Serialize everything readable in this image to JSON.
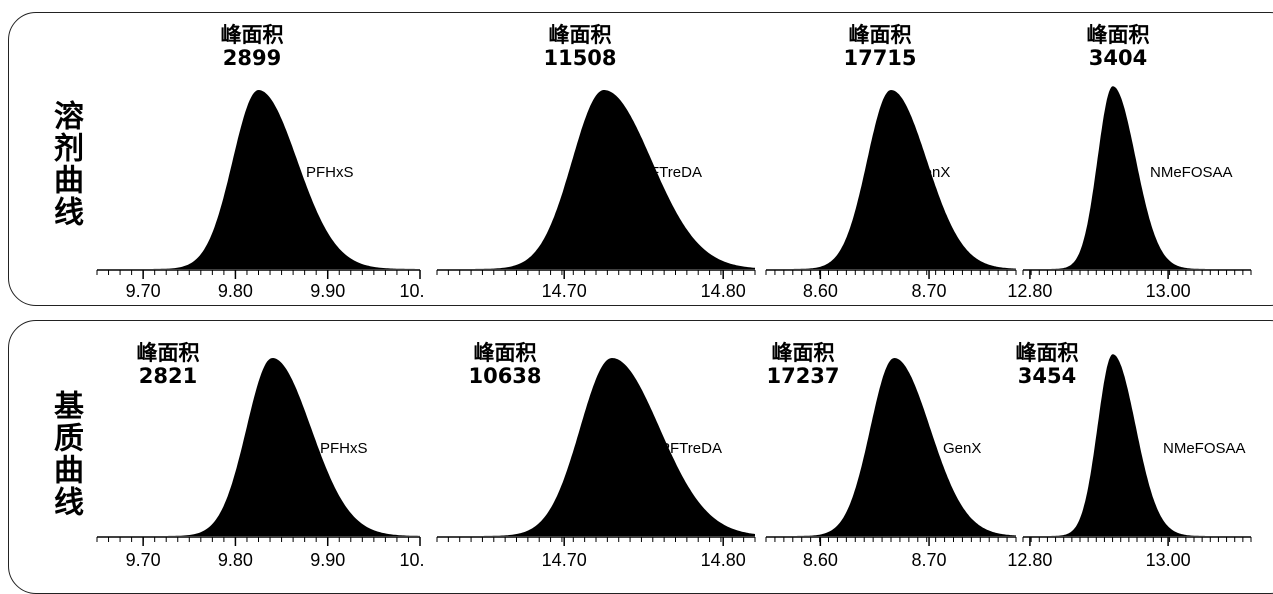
{
  "rows": [
    {
      "label": "溶剂曲线",
      "panels": [
        {
          "compound": "PFHxS",
          "area_label": "峰面积",
          "area_value": "2899",
          "ticks": [
            "9.70",
            "9.80",
            "9.90",
            "10."
          ],
          "tick_values": [
            9.7,
            9.8,
            9.9,
            10.0
          ],
          "xlim": [
            9.65,
            10.0
          ],
          "peak_center": 9.825,
          "peak_width": 0.028,
          "tail": 1.5,
          "peak_height": 0.95
        },
        {
          "compound": "PFTreDA",
          "area_label": "峰面积",
          "area_value": "11508",
          "ticks": [
            "14.70",
            "14.80"
          ],
          "tick_values": [
            14.7,
            14.8
          ],
          "xlim": [
            14.62,
            14.82
          ],
          "peak_center": 14.725,
          "peak_width": 0.02,
          "tail": 1.5,
          "peak_height": 0.95
        },
        {
          "compound": "GenX",
          "area_label": "峰面积",
          "area_value": "17715",
          "ticks": [
            "8.60",
            "8.70"
          ],
          "tick_values": [
            8.6,
            8.7
          ],
          "xlim": [
            8.55,
            8.78
          ],
          "peak_center": 8.665,
          "peak_width": 0.022,
          "tail": 1.5,
          "peak_height": 0.95
        },
        {
          "compound": "NMeFOSAA",
          "area_label": "峰面积",
          "area_value": "3404",
          "ticks": [
            "12.80",
            "13.00"
          ],
          "tick_values": [
            12.8,
            13.0
          ],
          "xlim": [
            12.79,
            13.12
          ],
          "peak_center": 12.92,
          "peak_width": 0.022,
          "tail": 1.5,
          "peak_height": 0.97
        }
      ]
    },
    {
      "label": "基质曲线",
      "panels": [
        {
          "compound": "PFHxS",
          "area_label": "峰面积",
          "area_value": "2821",
          "ticks": [
            "9.70",
            "9.80",
            "9.90",
            "10."
          ],
          "tick_values": [
            9.7,
            9.8,
            9.9,
            10.0
          ],
          "xlim": [
            9.65,
            10.0
          ],
          "peak_center": 9.84,
          "peak_width": 0.028,
          "tail": 1.5,
          "peak_height": 0.95
        },
        {
          "compound": "PFTreDA",
          "area_label": "峰面积",
          "area_value": "10638",
          "ticks": [
            "14.70",
            "14.80"
          ],
          "tick_values": [
            14.7,
            14.8
          ],
          "xlim": [
            14.62,
            14.82
          ],
          "peak_center": 14.73,
          "peak_width": 0.02,
          "tail": 1.5,
          "peak_height": 0.95
        },
        {
          "compound": "GenX",
          "area_label": "峰面积",
          "area_value": "17237",
          "ticks": [
            "8.60",
            "8.70"
          ],
          "tick_values": [
            8.6,
            8.7
          ],
          "xlim": [
            8.55,
            8.78
          ],
          "peak_center": 8.668,
          "peak_width": 0.022,
          "tail": 1.5,
          "peak_height": 0.95
        },
        {
          "compound": "NMeFOSAA",
          "area_label": "峰面积",
          "area_value": "3454",
          "ticks": [
            "12.80",
            "13.00"
          ],
          "tick_values": [
            12.8,
            13.0
          ],
          "xlim": [
            12.79,
            13.12
          ],
          "peak_center": 12.92,
          "peak_width": 0.022,
          "tail": 1.5,
          "peak_height": 0.97
        }
      ]
    }
  ],
  "chart_data": {
    "type": "area",
    "rows": [
      "溶剂曲线",
      "基质曲线"
    ],
    "categories": [
      "PFHxS",
      "PFTreDA",
      "GenX",
      "NMeFOSAA"
    ],
    "series": [
      {
        "name": "溶剂曲线",
        "values": [
          2899,
          11508,
          17715,
          3404
        ]
      },
      {
        "name": "基质曲线",
        "values": [
          2821,
          10638,
          17237,
          3454
        ]
      }
    ],
    "value_label": "峰面积"
  }
}
